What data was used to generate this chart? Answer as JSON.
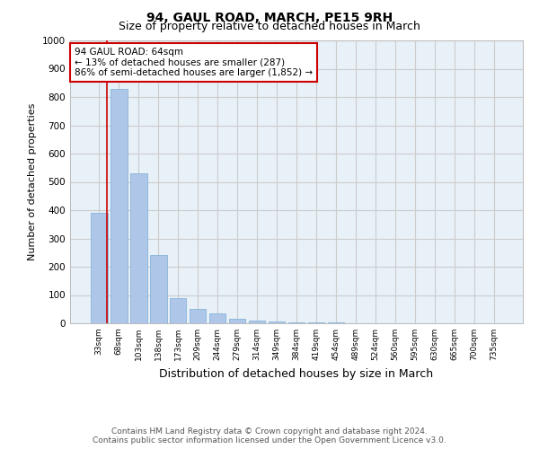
{
  "title": "94, GAUL ROAD, MARCH, PE15 9RH",
  "subtitle": "Size of property relative to detached houses in March",
  "xlabel": "Distribution of detached houses by size in March",
  "ylabel": "Number of detached properties",
  "categories": [
    "33sqm",
    "68sqm",
    "103sqm",
    "138sqm",
    "173sqm",
    "209sqm",
    "244sqm",
    "279sqm",
    "314sqm",
    "349sqm",
    "384sqm",
    "419sqm",
    "454sqm",
    "489sqm",
    "524sqm",
    "560sqm",
    "595sqm",
    "630sqm",
    "665sqm",
    "700sqm",
    "735sqm"
  ],
  "bar_heights": [
    390,
    830,
    530,
    240,
    90,
    50,
    35,
    15,
    10,
    5,
    3,
    2,
    2,
    1,
    1,
    1,
    1,
    0,
    0,
    0,
    0
  ],
  "bar_color": "#aec6e8",
  "bar_edge_color": "#7aadd4",
  "property_line_x": 0.42,
  "property_line_color": "#cc0000",
  "annotation_text": "94 GAUL ROAD: 64sqm\n← 13% of detached houses are smaller (287)\n86% of semi-detached houses are larger (1,852) →",
  "annotation_box_color": "#ffffff",
  "annotation_box_edge": "#cc0000",
  "ylim": [
    0,
    1000
  ],
  "yticks": [
    0,
    100,
    200,
    300,
    400,
    500,
    600,
    700,
    800,
    900,
    1000
  ],
  "grid_color": "#cccccc",
  "bg_color": "#e8f0f8",
  "footer_line1": "Contains HM Land Registry data © Crown copyright and database right 2024.",
  "footer_line2": "Contains public sector information licensed under the Open Government Licence v3.0.",
  "title_fontsize": 10,
  "subtitle_fontsize": 9,
  "annotation_fontsize": 7.5,
  "footer_fontsize": 6.5,
  "ylabel_fontsize": 8,
  "xlabel_fontsize": 9
}
